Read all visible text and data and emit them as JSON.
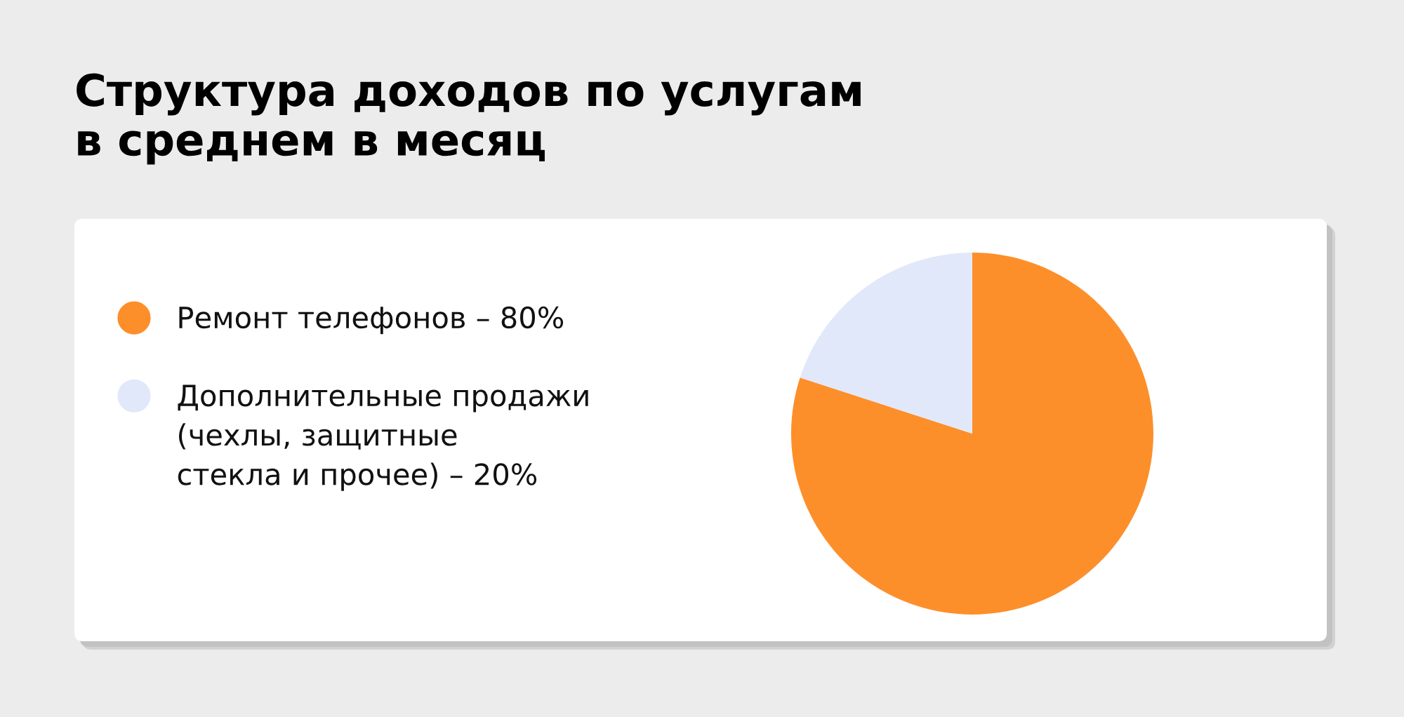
{
  "chart_data": {
    "type": "pie",
    "title": "Структура доходов по услугам\nв среднем в месяц",
    "categories": [
      "Ремонт телефонов – 80%",
      "Дополнительные продажи\n(чехлы, защитные\nстекла и прочее) – 20%"
    ],
    "values": [
      80,
      20
    ],
    "colors": [
      "#fd8f2a",
      "#e1e8fa"
    ],
    "legend": "left"
  }
}
